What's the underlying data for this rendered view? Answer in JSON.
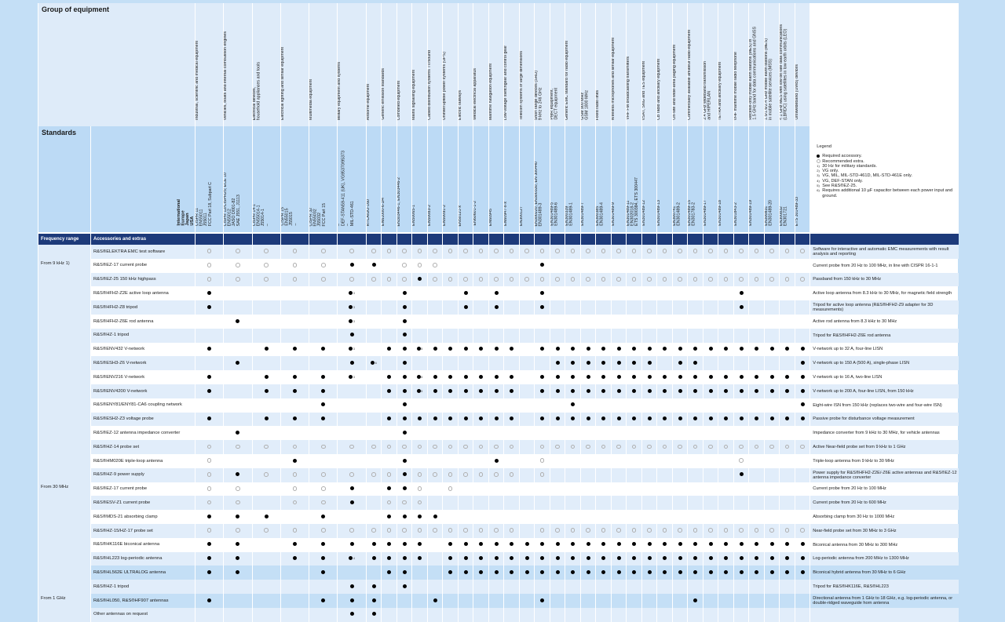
{
  "header": {
    "group_title": "Group of equipment",
    "standards_title": "Standards",
    "regions_label": "International\nEurope\nJapan\nUSA",
    "freq_col": "Frequency range",
    "acc_col": "Accessories and extras"
  },
  "groups": [
    "Industrial, scientific and medical equipment",
    "Vehicles, boats and internal combustion engines",
    "Electrical devices,\nhousehold appliances and tools",
    "Electrical lighting and similar equipment",
    "Multimedia equipment",
    "Military equipment and systems",
    "Airborne equipment",
    "Generic emission standards",
    "Combined equipment",
    "Mains signalling equipment",
    "Cabled distribution systems TV/sound",
    "Uninterruptible power systems (UPS)",
    "Electric railways",
    "Medical electrical apparatus",
    "Maritime navigation equipment",
    "Low-voltage switchgear and control gear",
    "Telecom systems of large dimensions",
    "Short range devices (SRD)\n9 kHz to 246 GHz",
    "PMR equipment,\nDECT equipment",
    "Generic EMC standard for radio equipment",
    "GSM 900 MHz\nGSM 1800 MHz",
    "Fixed radio links",
    "Wireless microphones and similar equipment",
    "VHF FM broadcasting transmitters",
    "VSAT, SNG and TES equipment",
    "CB radio and ancillary equipment",
    "On-site and wide-area paging equipment",
    "Commercially available amateur radio equipment",
    "2.4 GHz wideband transmission\nand HIPERLAN",
    "TETRA and ancillary equipment",
    "VHF maritime mobile radio telephone",
    "Receive-only mobile earth stations (MES) in\n1.5 GHz band for data communications and GNSS",
    "1.5/1.6/2.4 GHz mobile earth stations (MES)\nin mobile satellite services (MSS)",
    "< 1 GHz MES with low bit rate data communications\n(LBRDC) using satellites in low earth orbits (LEO)",
    "Ultrawideband (UWB) devices"
  ],
  "standards": [
    "CISPR 11\nEN55011\nJ55011\nFCC Part 18, Subpart C",
    "CISPR 12/CISPR25; ECE 10\nEN55012\nJASO D001-82\nSAE J551, J1113",
    "CISPR 14-1\nEN55014-1\nJ55014-1\n–",
    "CISPR 15\nEN55015\nJ55015\n–",
    "CISPR 32\nEN55032\nJ55032\nFCC Part 15",
    "–\nDEF-STAN59-411 (UK), VG95370/95373\n–\nMIL-STD-461",
    "RTCA/DO-160",
    "EN61000-6-3/4",
    "EN303446-1, EN303446-2",
    "EN50065-1",
    "EN50083-2",
    "EN50091-2",
    "EN50121-x",
    "EN60601-1-2",
    "EN60945",
    "EN60947-x-x",
    "EN300127",
    "EN300220, EN300330, EN 300440\nEN301489-3",
    "EN301489-5\nEN301489-6",
    "EN300339\nEN301489-1",
    "EN301489-7",
    "EN300385\nEN301489-4",
    "EN301489-9",
    "EN301489-11\nEN302018-2\nETS 300384, ETS 300447",
    "EN301489-12",
    "EN301489-13",
    "EN300741\nEN301489-2",
    "EN301489-15\nEN301783-2",
    "EN301489-17",
    "EN301489-18",
    "EN301843-2",
    "EN301489-19",
    "EN300831\nEN301489-20",
    "EN300832\nEN301721",
    "ETS 301489-33"
  ],
  "legend": {
    "title": "Legend",
    "items": [
      {
        "sym": "filled",
        "text": "Required accessory."
      },
      {
        "sym": "open",
        "text": "Recommended extra."
      },
      {
        "sym": "1)",
        "text": "30 Hz for military standards."
      },
      {
        "sym": "2)",
        "text": "VG only."
      },
      {
        "sym": "3)",
        "text": "VG, MIL, MIL-STD-461D, MIL-STD-461E only."
      },
      {
        "sym": "4)",
        "text": "VG, DEF-STAN only."
      },
      {
        "sym": "5)",
        "text": "See R&S®EZ-25."
      },
      {
        "sym": "6)",
        "text": "Requires additional 10 µF capacitor between each power input and ground."
      }
    ]
  },
  "rows": [
    {
      "freq": "",
      "name": "R&S®ELEKTRA EMC test software",
      "desc": "Software for interactive and automatic EMC measurements with result analysis and reporting",
      "filled": [],
      "open": [
        "1-35"
      ],
      "notes": {}
    },
    {
      "freq": "From 9 kHz 1)",
      "name": "R&S®EZ-17 current probe",
      "desc": "Current probe from 20 Hz to 100 MHz, in line with CISPR 16-1-1",
      "filled": [
        "6",
        "7",
        "18"
      ],
      "open": [
        "1-5",
        "9-11"
      ],
      "notes": {}
    },
    {
      "freq": "",
      "name": "R&S®EZ-25 150 kHz highpass",
      "desc": "Passband from 150 kHz to 30 MHz",
      "filled": [
        "10"
      ],
      "open": [
        "1-9",
        "11-35"
      ],
      "notes": {}
    },
    {
      "freq": "",
      "name": "R&S®HFH2-Z2E active loop antenna",
      "desc": "Active loop antenna from 8.3 kHz to 30 MHz, for magnetic field strength",
      "filled": [
        "1",
        "6",
        "9",
        "13",
        "15",
        "18",
        "31"
      ],
      "open": [],
      "notes": {
        "6": "3"
      }
    },
    {
      "freq": "",
      "name": "R&S®HFH2-Z8 tripod",
      "desc": "Tripod for active loop antenna (R&S®HFH2-Z9 adapter for 3D measurements)",
      "filled": [
        "1",
        "6",
        "9",
        "13",
        "15",
        "18",
        "31"
      ],
      "open": [],
      "notes": {
        "6": "3"
      }
    },
    {
      "freq": "",
      "name": "R&S®HFH2-Z6E rod antenna",
      "desc": "Active rod antenna from 8.3 kHz to 30 MHz",
      "filled": [
        "2",
        "6",
        "9"
      ],
      "open": [],
      "notes": {
        "6": "3"
      }
    },
    {
      "freq": "",
      "name": "R&S®HZ-1 tripod",
      "desc": "Tripod for R&S®HFH2-Z6E rod antenna",
      "filled": [
        "6",
        "9"
      ],
      "open": [],
      "notes": {}
    },
    {
      "freq": "",
      "name": "R&S®ENV432 V-network",
      "desc": "V-network up to 32 A, four-line LISN",
      "filled": [
        "1",
        "3-6",
        "8-16",
        "18-35"
      ],
      "open": [],
      "notes": {
        "6": "3",
        "10": "5"
      }
    },
    {
      "freq": "",
      "name": "R&S®ESH3-Z6 V-network",
      "desc": "V-network up to 150 A (500 A), single-phase LISN",
      "filled": [
        "2",
        "6",
        "7",
        "9",
        "19-25",
        "27",
        "28",
        "35"
      ],
      "open": [],
      "notes": {
        "7": "6"
      }
    },
    {
      "freq": "",
      "name": "R&S®ENV216 V-network",
      "desc": "V-network up to 16 A, two-line LISN",
      "filled": [
        "1",
        "3-6",
        "8-16",
        "18-35"
      ],
      "open": [],
      "notes": {
        "6": "3",
        "10": "5"
      }
    },
    {
      "freq": "",
      "name": "R&S®ENV4200 V-network",
      "desc": "V-network up to 200 A, four-line LISN, from 150 kHz",
      "filled": [
        "1",
        "3-5",
        "8-16",
        "18-35"
      ],
      "open": [],
      "notes": {
        "10": "5"
      }
    },
    {
      "freq": "",
      "name": "R&S®ENY81/ENY81-CA6 coupling network",
      "desc": "Eight-wire ISN from 150 kHz (replaces two-wire and four-wire ISN)",
      "filled": [
        "5",
        "9",
        "20",
        "35"
      ],
      "open": [],
      "notes": {}
    },
    {
      "freq": "",
      "name": "R&S®ESH2-Z3 voltage probe",
      "desc": "Passive probe for disturbance voltage measurement",
      "filled": [
        "1",
        "3-5",
        "8-16",
        "18-35"
      ],
      "open": [],
      "notes": {}
    },
    {
      "freq": "",
      "name": "R&S®EZ-12 antenna impedance converter",
      "desc": "Impedance converter from 9 kHz to 30 MHz, for vehicle antennas",
      "filled": [
        "2",
        "9"
      ],
      "open": [],
      "notes": {}
    },
    {
      "freq": "",
      "name": "R&S®HZ-14 probe set",
      "desc": "Active Near-field probe set from 9 kHz to 1 GHz",
      "filled": [],
      "open": [
        "1-16",
        "18-35"
      ],
      "notes": {}
    },
    {
      "freq": "",
      "name": "R&S®HM020E triple-loop antenna",
      "desc": "Triple-loop antenna from 9 kHz to 30 MHz",
      "filled": [
        "4",
        "9",
        "15"
      ],
      "open": [
        "1",
        "18",
        "31"
      ],
      "notes": {}
    },
    {
      "freq": "",
      "name": "R&S®HZ-9 power supply",
      "desc": "Power supply for R&S®HFH2-Z2E/-Z6E active antennas and R&S®EZ-12 antenna impedance converter",
      "filled": [
        "2",
        "9",
        "31"
      ],
      "open": [
        "1",
        "3-8",
        "10-16",
        "18"
      ],
      "notes": {}
    },
    {
      "freq": "From 30 MHz",
      "name": "R&S®EZ-17 current probe",
      "desc": "Current probe from 20 Hz to 100 MHz",
      "filled": [
        "6",
        "8",
        "9"
      ],
      "open": [
        "1",
        "2",
        "4",
        "5",
        "10",
        "12"
      ],
      "notes": {}
    },
    {
      "freq": "",
      "name": "R&S®ESV-Z1 current probe",
      "desc": "Current probe from 20 Hz to 600 MHz",
      "filled": [
        "6"
      ],
      "open": [
        "1",
        "2",
        "4",
        "5",
        "8-10"
      ],
      "notes": {}
    },
    {
      "freq": "",
      "name": "R&S®MDS-21 absorbing clamp",
      "desc": "Absorbing clamp from 30 Hz to 1000 MHz",
      "filled": [
        "1-3",
        "5",
        "8-11"
      ],
      "open": [],
      "notes": {}
    },
    {
      "freq": "",
      "name": "R&S®HZ-15/HZ-17 probe set",
      "desc": "Near-field probe set from 30 MHz to 3 GHz",
      "filled": [],
      "open": [
        "1-16",
        "18-35"
      ],
      "notes": {}
    },
    {
      "freq": "",
      "name": "R&S®HK116E biconical antenna",
      "desc": "Biconical antenna from 30 MHz to 300 MHz",
      "filled": [
        "1",
        "2",
        "4-10",
        "12-35"
      ],
      "open": [],
      "notes": {}
    },
    {
      "freq": "",
      "name": "R&S®HL223 log-periodic antenna",
      "desc": "Log-periodic antenna from 200 MHz to 1300 MHz",
      "filled": [
        "1",
        "2",
        "4-10",
        "12-35"
      ],
      "open": [],
      "notes": {
        "6": "4"
      }
    },
    {
      "freq": "",
      "name": "R&S®HL562E ULTRALOG antenna",
      "desc": "Biconical hybrid antenna from 30 MHz to 6 GHz",
      "filled": [
        "1",
        "2",
        "5",
        "8",
        "9",
        "12-35"
      ],
      "open": [],
      "notes": {}
    },
    {
      "freq": "",
      "name": "R&S®HZ-1 tripod",
      "desc": "Tripod for R&S®HK116E, R&S®HL223",
      "filled": [
        "6",
        "7",
        "9"
      ],
      "open": [],
      "notes": {}
    },
    {
      "freq": "From 1 GHz",
      "name": "R&S®HL050, R&S®HF907 antennas",
      "desc": "Directional antenna from 1 GHz to 18 GHz, e.g. log-periodic antenna, or double-ridged waveguide horn antenna",
      "filled": [
        "1",
        "5-7",
        "11",
        "18",
        "28"
      ],
      "open": [],
      "notes": {}
    },
    {
      "freq": "",
      "name": "Other antennas on request",
      "desc": "",
      "filled": [
        "6",
        "7"
      ],
      "open": [],
      "notes": {}
    }
  ]
}
